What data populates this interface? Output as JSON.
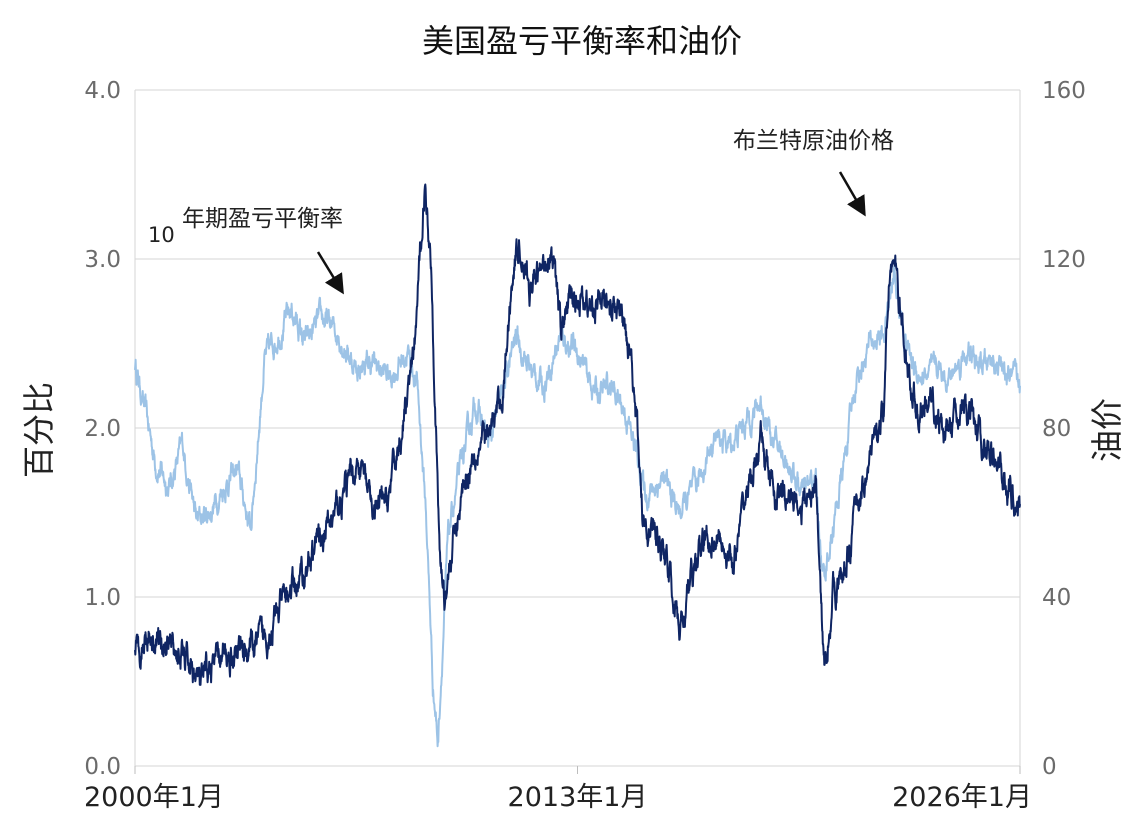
{
  "chart_data": {
    "type": "line",
    "title": "美国盈亏平衡率和油价",
    "ylabel": "百分比",
    "y2label": "油价",
    "ylim": [
      0,
      4
    ],
    "y2lim": [
      0,
      160
    ],
    "yticks": [
      "0.0",
      "1.0",
      "2.0",
      "3.0",
      "4.0"
    ],
    "y2ticks": [
      "0",
      "40",
      "80",
      "120",
      "160"
    ],
    "xrange": [
      2000.0,
      2026.0
    ],
    "xticks": [
      {
        "value": 2000.0,
        "label": "2000年1月"
      },
      {
        "value": 2013.0,
        "label": "2013年1月"
      },
      {
        "value": 2026.0,
        "label": "2026年1月"
      }
    ],
    "series": [
      {
        "name": "10年期盈亏平衡率",
        "axis": "left",
        "color": "#9dc3e6",
        "x": [
          2000.0,
          2000.3,
          2000.6,
          2001.0,
          2001.4,
          2001.8,
          2002.2,
          2002.6,
          2003.0,
          2003.4,
          2003.8,
          2004.2,
          2004.6,
          2005.0,
          2005.5,
          2006.0,
          2006.5,
          2007.0,
          2007.5,
          2008.0,
          2008.3,
          2008.55,
          2008.75,
          2008.9,
          2009.0,
          2009.2,
          2009.5,
          2010.0,
          2010.4,
          2010.8,
          2011.2,
          2011.6,
          2012.0,
          2012.5,
          2013.0,
          2013.3,
          2013.6,
          2014.0,
          2014.4,
          2014.8,
          2015.0,
          2015.5,
          2016.0,
          2016.5,
          2017.0,
          2017.5,
          2018.0,
          2018.4,
          2018.8,
          2019.2,
          2019.6,
          2020.0,
          2020.2,
          2020.5,
          2020.8,
          2021.2,
          2021.6,
          2022.0,
          2022.3,
          2022.6,
          2022.9,
          2023.2,
          2023.6,
          2024.0,
          2024.4,
          2024.8,
          2025.2,
          2025.6,
          2026.0
        ],
        "values": [
          2.38,
          2.1,
          1.8,
          1.65,
          1.9,
          1.45,
          1.5,
          1.65,
          1.75,
          1.4,
          2.4,
          2.55,
          2.7,
          2.5,
          2.65,
          2.55,
          2.35,
          2.38,
          2.3,
          2.45,
          2.25,
          1.5,
          0.5,
          0.15,
          0.55,
          1.35,
          1.7,
          2.15,
          1.9,
          2.2,
          2.55,
          2.35,
          2.25,
          2.55,
          2.45,
          2.3,
          2.2,
          2.25,
          2.1,
          1.8,
          1.6,
          1.7,
          1.5,
          1.65,
          1.95,
          1.9,
          2.05,
          2.15,
          1.9,
          1.8,
          1.6,
          1.7,
          1.1,
          1.4,
          1.75,
          2.3,
          2.5,
          2.55,
          2.9,
          2.55,
          2.35,
          2.3,
          2.35,
          2.3,
          2.45,
          2.35,
          2.4,
          2.3,
          2.25
        ]
      },
      {
        "name": "布兰特原油价格",
        "axis": "right",
        "color": "#0f2563",
        "x": [
          2000.0,
          2000.4,
          2000.8,
          2001.2,
          2001.6,
          2001.95,
          2002.3,
          2002.7,
          2003.0,
          2003.4,
          2003.8,
          2004.2,
          2004.6,
          2005.0,
          2005.4,
          2005.8,
          2006.2,
          2006.6,
          2007.0,
          2007.4,
          2007.8,
          2008.2,
          2008.5,
          2008.7,
          2008.95,
          2009.1,
          2009.4,
          2009.7,
          2010.0,
          2010.4,
          2010.8,
          2011.1,
          2011.3,
          2011.6,
          2012.0,
          2012.2,
          2012.5,
          2013.0,
          2013.4,
          2013.8,
          2014.2,
          2014.6,
          2014.9,
          2015.2,
          2015.6,
          2016.0,
          2016.4,
          2016.8,
          2017.2,
          2017.6,
          2018.0,
          2018.4,
          2018.8,
          2019.2,
          2019.6,
          2020.0,
          2020.25,
          2020.5,
          2020.8,
          2021.2,
          2021.6,
          2022.0,
          2022.2,
          2022.4,
          2022.7,
          2023.0,
          2023.4,
          2023.8,
          2024.2,
          2024.6,
          2025.0,
          2025.4,
          2025.8,
          2026.0
        ],
        "values": [
          26,
          32,
          30,
          27,
          24,
          19,
          24,
          26,
          28,
          28,
          30,
          36,
          42,
          46,
          54,
          58,
          66,
          72,
          60,
          62,
          78,
          96,
          138,
          120,
          50,
          40,
          55,
          68,
          76,
          78,
          88,
          118,
          124,
          112,
          118,
          124,
          104,
          112,
          108,
          110,
          108,
          98,
          60,
          56,
          50,
          32,
          46,
          54,
          54,
          48,
          66,
          76,
          64,
          64,
          62,
          66,
          22,
          42,
          44,
          62,
          72,
          84,
          122,
          114,
          92,
          84,
          86,
          78,
          86,
          80,
          76,
          70,
          64,
          62
        ]
      }
    ],
    "annotations": [
      {
        "text_sup": "10",
        "text": "年期盈亏平衡率",
        "series": 0
      },
      {
        "text": "布兰特原油价格",
        "series": 1
      }
    ]
  }
}
